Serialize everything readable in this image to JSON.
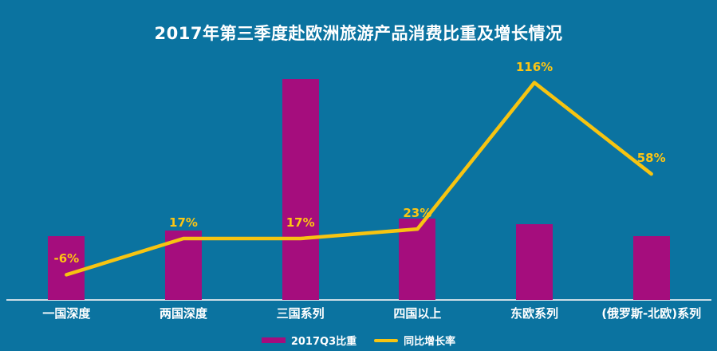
{
  "colors": {
    "background": "#0B73A0",
    "bar": "#A50D7D",
    "line": "#F7C411",
    "title_text": "#FFFFFF",
    "category_text": "#FFFFFF",
    "data_label_text": "#FDC513",
    "axis_line": "#CBDDE6"
  },
  "chart_data": {
    "type": "bar",
    "subtype": "bar-line-combo",
    "title": "2017年第三季度赴欧洲旅游产品消费比重及增长情况",
    "categories": [
      "一国深度",
      "两国深度",
      "三国系列",
      "四国以上",
      "东欧系列",
      "(俄罗斯-北欧)系列"
    ],
    "series": [
      {
        "name": "2017Q3比重",
        "type": "bar",
        "unit": "%",
        "values": [
          11,
          12,
          38,
          14,
          13,
          11
        ]
      },
      {
        "name": "同比增长率",
        "type": "line",
        "unit": "%",
        "values": [
          -6,
          17,
          17,
          23,
          116,
          58
        ],
        "data_labels": [
          "-6%",
          "17%",
          "17%",
          "23%",
          "116%",
          "58%"
        ]
      }
    ],
    "bar_axis_range": [
      0,
      42
    ],
    "line_axis_range": [
      -22,
      133
    ],
    "grid": false,
    "y_axis_ticks_visible": false,
    "legend_position": "bottom"
  }
}
